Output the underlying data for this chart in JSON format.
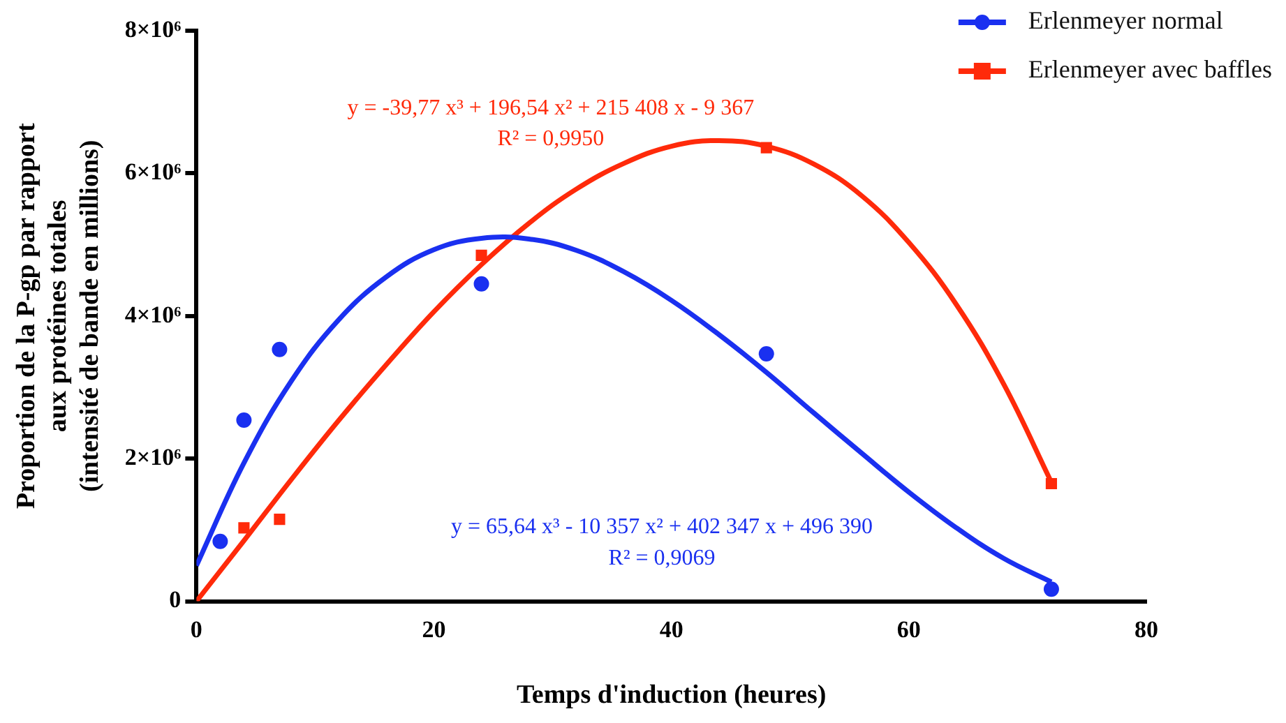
{
  "chart_data": {
    "type": "scatter",
    "xlabel": "Temps d'induction (heures)",
    "ylabel": "Proportion de la P-gp par rapport\naux protéines totales\n(intensité de bande en millions)",
    "xlim": [
      0,
      80
    ],
    "xticks": [
      0,
      20,
      40,
      60,
      80
    ],
    "ylim": [
      0,
      8000000
    ],
    "yticks": [
      0,
      {
        "value": 2000000,
        "label": "2×10⁶"
      },
      {
        "value": 4000000,
        "label": "4×10⁶"
      },
      {
        "value": 6000000,
        "label": "6×10⁶"
      },
      {
        "value": 8000000,
        "label": "8×10⁶"
      }
    ],
    "legend": "top right",
    "grid": false,
    "series": [
      {
        "name": "Erlenmeyer normal",
        "marker": "circle",
        "color": "#1a30f0",
        "x": [
          2,
          4,
          7,
          24,
          48,
          72
        ],
        "values": [
          840000,
          2540000,
          3530000,
          4450000,
          3470000,
          170000
        ]
      },
      {
        "name": "Erlenmeyer avec baffles",
        "marker": "square",
        "color": "#ff2a0a",
        "x": [
          4,
          7,
          24,
          48,
          72
        ],
        "values": [
          1030000,
          1150000,
          4850000,
          6360000,
          1650000
        ]
      },
      {
        "type": "line",
        "marker": "none",
        "color": "#1a30f0",
        "x": [
          0,
          4,
          8,
          12,
          16,
          20,
          24,
          28,
          32,
          36,
          40,
          44,
          48,
          52,
          56,
          60,
          64,
          68,
          72
        ],
        "values": [
          500000,
          1940000,
          3090000,
          3950000,
          4550000,
          4930000,
          5090000,
          5080000,
          4920000,
          4620000,
          4220000,
          3740000,
          3210000,
          2640000,
          2080000,
          1530000,
          1030000,
          600000,
          270000
        ]
      },
      {
        "type": "line",
        "marker": "none",
        "color": "#ff2a0a",
        "x": [
          0,
          4,
          8,
          12,
          16,
          20,
          24,
          28,
          32,
          36,
          40,
          44,
          48,
          52,
          56,
          60,
          64,
          68,
          72
        ],
        "values": [
          0,
          850000,
          1710000,
          2540000,
          3320000,
          4060000,
          4720000,
          5300000,
          5780000,
          6140000,
          6380000,
          6460000,
          6380000,
          6130000,
          5690000,
          5030000,
          4160000,
          3040000,
          1670000
        ]
      }
    ],
    "annotations": [
      "y = -39,77 x³ + 196,54 x² + 215 408 x - 9 367",
      "R² = 0,9950",
      "y = 65,64 x³ - 10 357 x² + 402 347 x + 496 390",
      "R² = 0,9069"
    ]
  }
}
